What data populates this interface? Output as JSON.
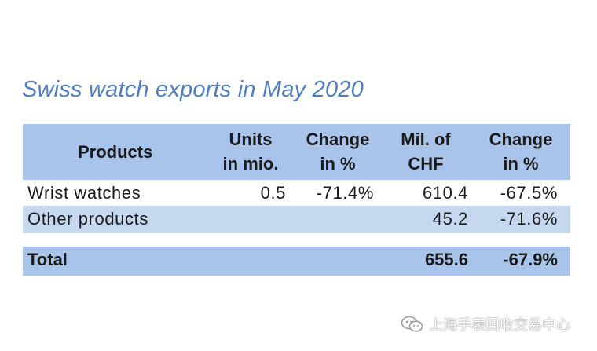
{
  "title": "Swiss watch exports in May 2020",
  "table": {
    "headers": {
      "products": "Products",
      "units": [
        "Units",
        "in mio."
      ],
      "change_units": [
        "Change",
        "in %"
      ],
      "value": [
        "Mil. of",
        "CHF"
      ],
      "change_value": [
        "Change",
        "in %"
      ]
    },
    "rows": [
      {
        "product": "Wrist watches",
        "units": "0.5",
        "change_units": "-71.4%",
        "value": "610.4",
        "change_value": "-67.5%"
      },
      {
        "product": "Other products",
        "units": "",
        "change_units": "",
        "value": "45.2",
        "change_value": "-71.6%"
      }
    ],
    "total": {
      "label": "Total",
      "value": "655.6",
      "change_value": "-67.9%"
    }
  },
  "watermark": {
    "text": "上海手表回收交易中心",
    "icon": "wechat-icon"
  },
  "colors": {
    "title": "#4f7ec2",
    "header_bg": "#a9c4ea",
    "row_alt_bg": "#c6d8f0"
  }
}
